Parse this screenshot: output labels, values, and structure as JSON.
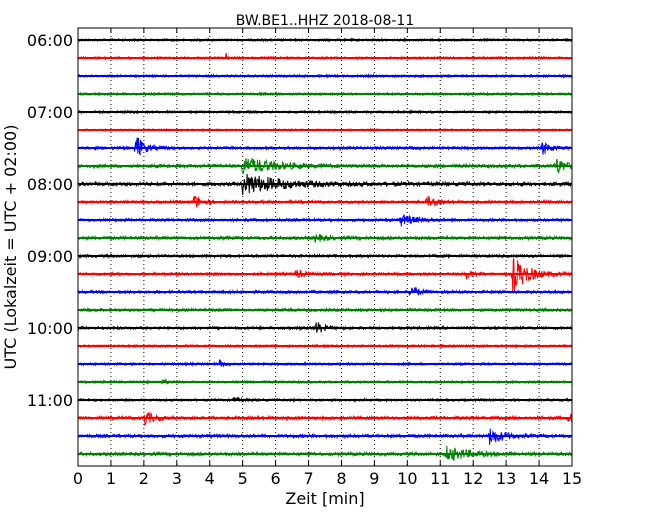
{
  "chart_data": {
    "type": "line",
    "title": "BW.BE1..HHZ 2018-08-11",
    "xlabel": "Zeit  [min]",
    "ylabel": "UTC (Lokalzeit = UTC + 02:00)",
    "xlim": [
      0,
      15
    ],
    "x_ticks": [
      "0",
      "1",
      "2",
      "3",
      "4",
      "5",
      "6",
      "7",
      "8",
      "9",
      "10",
      "11",
      "12",
      "13",
      "14",
      "15"
    ],
    "grid": "vertical-dotted",
    "colors": [
      "#000000",
      "#ff0000",
      "#0000ff",
      "#008000"
    ],
    "y_tick_labels": [
      {
        "row": 0,
        "label": "06:00"
      },
      {
        "row": 4,
        "label": "07:00"
      },
      {
        "row": 8,
        "label": "08:00"
      },
      {
        "row": 12,
        "label": "09:00"
      },
      {
        "row": 16,
        "label": "10:00"
      },
      {
        "row": 20,
        "label": "11:00"
      }
    ],
    "rows": [
      {
        "start": "06:00",
        "color": "#000000",
        "noise": 0.25,
        "events": []
      },
      {
        "start": "06:15",
        "color": "#ff0000",
        "noise": 0.25,
        "events": [
          {
            "t": 4.5,
            "amp": 1.0,
            "dur": 0.1
          }
        ]
      },
      {
        "start": "06:30",
        "color": "#0000ff",
        "noise": 0.25,
        "events": []
      },
      {
        "start": "06:45",
        "color": "#008000",
        "noise": 0.25,
        "events": []
      },
      {
        "start": "07:00",
        "color": "#000000",
        "noise": 0.25,
        "events": []
      },
      {
        "start": "07:15",
        "color": "#ff0000",
        "noise": 0.2,
        "events": []
      },
      {
        "start": "07:30",
        "color": "#0000ff",
        "noise": 0.3,
        "events": [
          {
            "t": 1.75,
            "amp": 3.0,
            "dur": 0.5
          },
          {
            "t": 14.1,
            "amp": 1.5,
            "dur": 0.5
          }
        ]
      },
      {
        "start": "07:45",
        "color": "#008000",
        "noise": 0.35,
        "events": [
          {
            "t": 5.0,
            "amp": 2.0,
            "dur": 2.0
          },
          {
            "t": 14.5,
            "amp": 2.0,
            "dur": 0.6
          }
        ]
      },
      {
        "start": "08:00",
        "color": "#000000",
        "noise": 0.4,
        "events": [
          {
            "t": 5.0,
            "amp": 2.3,
            "dur": 2.5
          }
        ]
      },
      {
        "start": "08:15",
        "color": "#ff0000",
        "noise": 0.3,
        "events": [
          {
            "t": 3.5,
            "amp": 1.6,
            "dur": 0.5
          },
          {
            "t": 10.6,
            "amp": 1.2,
            "dur": 0.5
          }
        ]
      },
      {
        "start": "08:30",
        "color": "#0000ff",
        "noise": 0.3,
        "events": [
          {
            "t": 9.8,
            "amp": 1.3,
            "dur": 0.9
          }
        ]
      },
      {
        "start": "08:45",
        "color": "#008000",
        "noise": 0.35,
        "events": [
          {
            "t": 7.2,
            "amp": 0.8,
            "dur": 0.6
          }
        ]
      },
      {
        "start": "09:00",
        "color": "#000000",
        "noise": 0.3,
        "events": []
      },
      {
        "start": "09:15",
        "color": "#ff0000",
        "noise": 0.3,
        "events": [
          {
            "t": 6.6,
            "amp": 1.0,
            "dur": 0.5
          },
          {
            "t": 11.8,
            "amp": 1.1,
            "dur": 0.4
          },
          {
            "t": 13.2,
            "amp": 4.0,
            "dur": 1.0
          }
        ]
      },
      {
        "start": "09:30",
        "color": "#0000ff",
        "noise": 0.3,
        "events": [
          {
            "t": 10.1,
            "amp": 1.6,
            "dur": 0.5
          }
        ]
      },
      {
        "start": "09:45",
        "color": "#008000",
        "noise": 0.3,
        "events": []
      },
      {
        "start": "10:00",
        "color": "#000000",
        "noise": 0.3,
        "events": [
          {
            "t": 7.2,
            "amp": 1.5,
            "dur": 0.5
          }
        ]
      },
      {
        "start": "10:15",
        "color": "#ff0000",
        "noise": 0.25,
        "events": []
      },
      {
        "start": "10:30",
        "color": "#0000ff",
        "noise": 0.25,
        "events": [
          {
            "t": 4.3,
            "amp": 0.8,
            "dur": 0.2
          }
        ]
      },
      {
        "start": "10:45",
        "color": "#008000",
        "noise": 0.25,
        "events": [
          {
            "t": 2.6,
            "amp": 0.8,
            "dur": 0.2
          }
        ]
      },
      {
        "start": "11:00",
        "color": "#000000",
        "noise": 0.25,
        "events": [
          {
            "t": 4.7,
            "amp": 0.5,
            "dur": 0.5
          }
        ]
      },
      {
        "start": "11:15",
        "color": "#ff0000",
        "noise": 0.35,
        "events": [
          {
            "t": 2.0,
            "amp": 1.8,
            "dur": 0.5
          },
          {
            "t": 14.9,
            "amp": 1.2,
            "dur": 0.3
          }
        ]
      },
      {
        "start": "11:30",
        "color": "#0000ff",
        "noise": 0.35,
        "events": [
          {
            "t": 12.5,
            "amp": 1.8,
            "dur": 0.9
          }
        ]
      },
      {
        "start": "11:45",
        "color": "#008000",
        "noise": 0.35,
        "events": [
          {
            "t": 11.2,
            "amp": 1.5,
            "dur": 1.5
          }
        ]
      }
    ]
  }
}
